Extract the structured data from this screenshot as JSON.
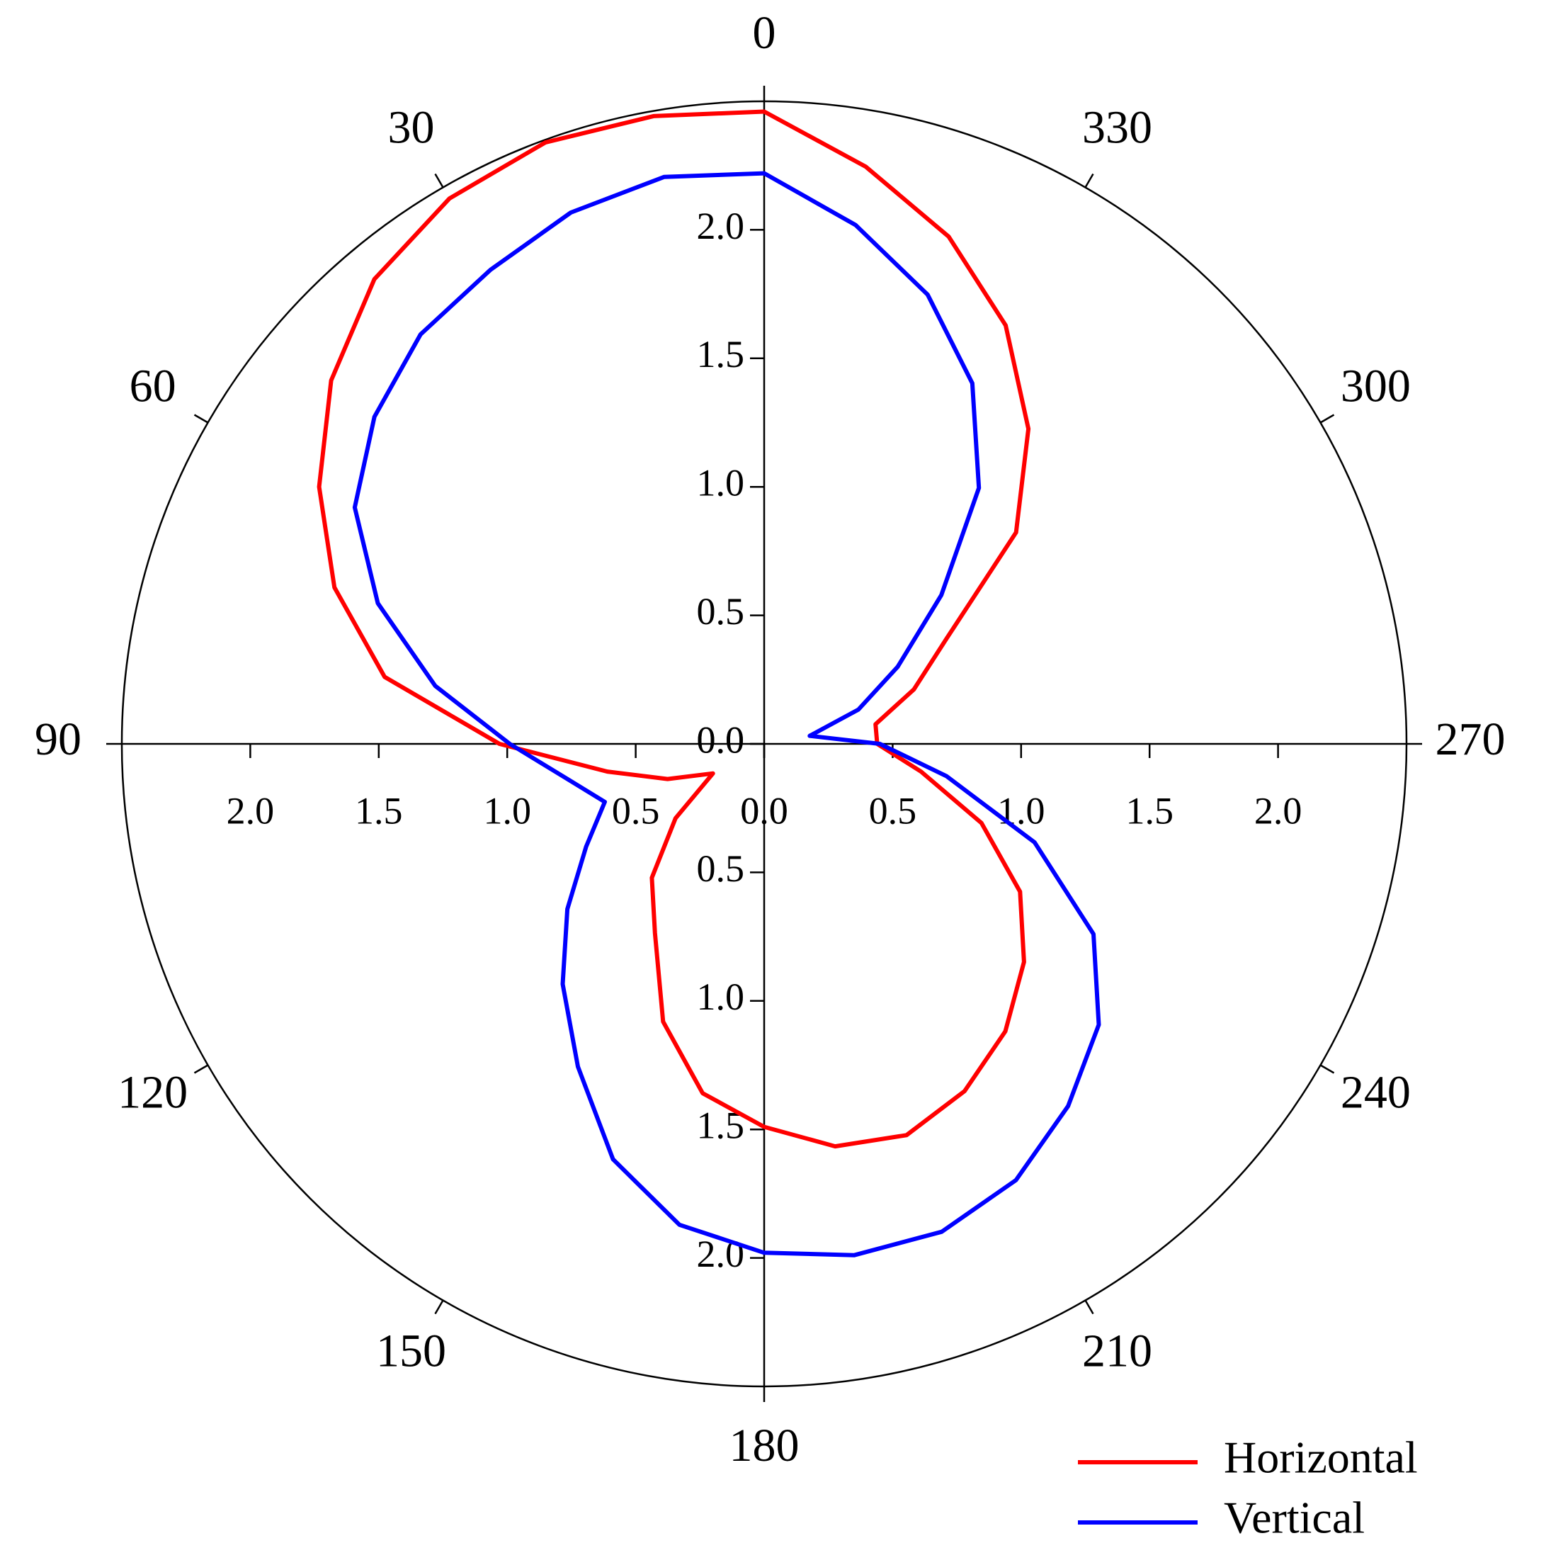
{
  "chart_data": {
    "type": "polar",
    "theta": [
      0,
      10,
      20,
      30,
      40,
      50,
      60,
      70,
      80,
      90,
      100,
      110,
      120,
      130,
      140,
      150,
      160,
      170,
      180,
      190,
      200,
      210,
      220,
      230,
      240,
      250,
      260,
      270,
      280,
      290,
      300,
      310,
      320,
      330,
      340,
      350
    ],
    "series": [
      {
        "name": "Horizontal",
        "color": "#ff0000",
        "values": [
          2.46,
          2.48,
          2.49,
          2.45,
          2.36,
          2.2,
          2.0,
          1.78,
          1.5,
          1.03,
          0.62,
          0.4,
          0.23,
          0.45,
          0.68,
          0.85,
          1.15,
          1.38,
          1.49,
          1.59,
          1.62,
          1.56,
          1.46,
          1.32,
          1.15,
          0.9,
          0.62,
          0.44,
          0.44,
          0.62,
          0.82,
          1.28,
          1.6,
          1.88,
          2.1,
          2.28
        ]
      },
      {
        "name": "Vertical",
        "color": "#0000ff",
        "values": [
          2.22,
          2.24,
          2.2,
          2.13,
          2.08,
          1.98,
          1.84,
          1.6,
          1.3,
          0.99,
          0.78,
          0.66,
          0.8,
          1.0,
          1.22,
          1.45,
          1.72,
          1.9,
          1.98,
          2.02,
          2.02,
          1.96,
          1.84,
          1.7,
          1.48,
          1.12,
          0.72,
          0.45,
          0.18,
          0.39,
          0.6,
          0.9,
          1.3,
          1.62,
          1.86,
          2.05
        ]
      }
    ],
    "rlim": [
      0,
      2.5
    ],
    "rticks": [
      {
        "value": 0,
        "label": "0.0"
      },
      0.5,
      {
        "value": 1,
        "label": "1.0"
      },
      1.5,
      {
        "value": 2,
        "label": "2.0"
      }
    ],
    "thetaticks": [
      0,
      30,
      60,
      90,
      120,
      150,
      180,
      210,
      240,
      270,
      300,
      330
    ]
  }
}
